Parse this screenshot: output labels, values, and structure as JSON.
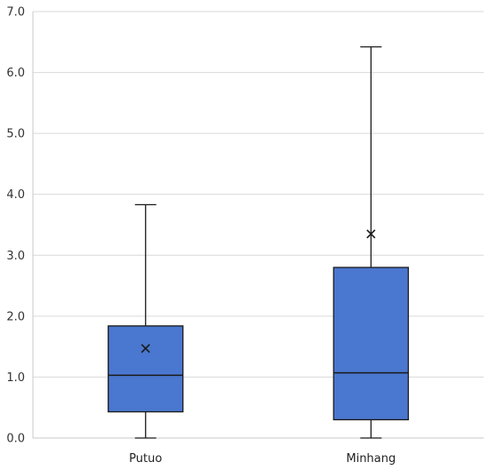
{
  "chart_data": {
    "type": "box",
    "title": "",
    "xlabel": "",
    "ylabel": "",
    "ylim": [
      0,
      7
    ],
    "yticks": [
      "0.0",
      "1.0",
      "2.0",
      "3.0",
      "4.0",
      "5.0",
      "6.0",
      "7.0"
    ],
    "grid": true,
    "legend": "none",
    "box_color": "#4a77cf",
    "categories": [
      "Putuo",
      "Minhang"
    ],
    "boxes": [
      {
        "category": "Putuo",
        "min": 0.0,
        "q1": 0.43,
        "median": 1.03,
        "q3": 1.84,
        "max": 3.83,
        "mean": 1.47
      },
      {
        "category": "Minhang",
        "min": 0.0,
        "q1": 0.3,
        "median": 1.07,
        "q3": 2.8,
        "max": 6.42,
        "mean": 3.35
      }
    ]
  }
}
